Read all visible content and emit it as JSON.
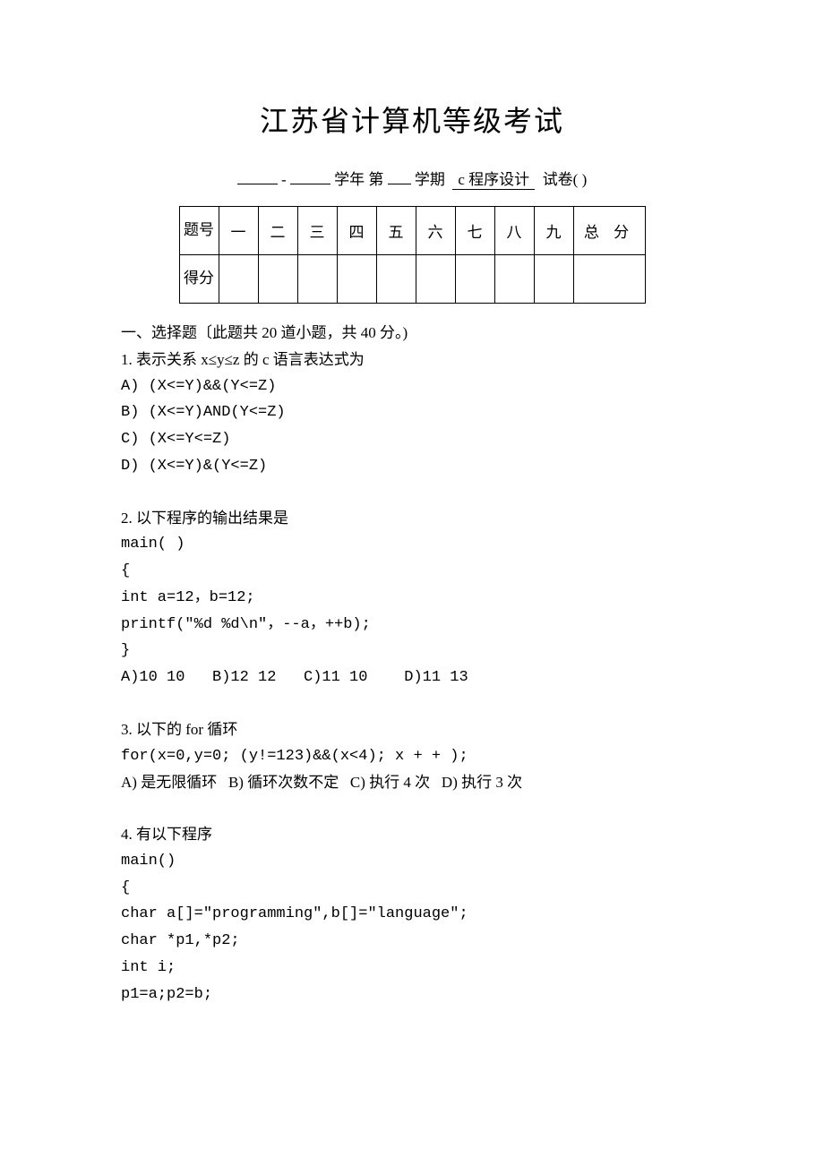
{
  "title": "江苏省计算机等级考试",
  "subtitle": {
    "year_sep": "-",
    "t1": "学年 第",
    "t2": "学期",
    "course": "c 程序设计",
    "t3": "试卷( )"
  },
  "score_table": {
    "row_label_1": "题号",
    "row_label_2": "得分",
    "cols": [
      "一",
      "二",
      "三",
      "四",
      "五",
      "六",
      "七",
      "八",
      "九"
    ],
    "total": "总 分"
  },
  "section1": {
    "header": "一、选择题〔此题共 20 道小题，共 40 分。)",
    "q1": {
      "stem": "1. 表示关系 x≤y≤z 的 c 语言表达式为",
      "A": "A)   (X<=Y)&&(Y<=Z)",
      "B": "B)   (X<=Y)AND(Y<=Z)",
      "C": "C)   (X<=Y<=Z)",
      "D": "D)   (X<=Y)&(Y<=Z)"
    },
    "q2": {
      "stem": " 2. 以下程序的输出结果是",
      "l1": "main( )",
      "l2": "{",
      "l3": "int a=12，b=12;",
      "l4": "printf(\"%d %d\\n\"，--a，++b);",
      "l5": "}",
      "opts": "A)10 10   B)12 12   C)11 10    D)11 13"
    },
    "q3": {
      "stem": " 3. 以下的 for 循环",
      "l1": " for(x=0,y=0; (y!=123)&&(x<4); x + + );",
      "opts": "A) 是无限循环   B) 循环次数不定   C) 执行 4 次   D) 执行 3 次"
    },
    "q4": {
      "stem": " 4. 有以下程序",
      "l1": "main()",
      "l2": "{",
      "l3": "char a[]=\"programming\",b[]=\"language\";",
      "l4": "char *p1,*p2;",
      "l5": "int i;",
      "l6": "p1=a;p2=b;"
    }
  }
}
